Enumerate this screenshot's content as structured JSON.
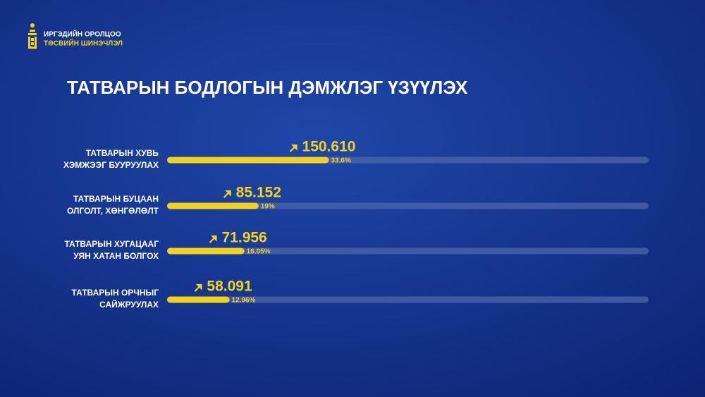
{
  "header": {
    "logo_lines": [
      "ИРГЭДИЙН ОРОЛЦОО",
      "ТӨСВИЙН ШИНЭЧЛЭЛ"
    ]
  },
  "chart_data": {
    "type": "bar",
    "title": "ТАТВАРЫН БОДЛОГЫН ДЭМЖЛЭГ ҮЗҮҮЛЭХ",
    "categories": [
      [
        "ТАТВАРЫН ХУВЬ",
        "ХЭМЖЭЭГ БУУРУУЛАХ"
      ],
      [
        "ТАТВАРЫН БУЦААН",
        "ОЛГОЛТ, ХӨНГӨЛӨЛТ"
      ],
      [
        "ТАТВАРЫН ХУГАЦААГ",
        "УЯН ХАТАН БОЛГОХ"
      ],
      [
        "ТАТВАРЫН ОРЧНЫГ",
        "САЙЖРУУЛАХ"
      ]
    ],
    "values": [
      33.6,
      19,
      16.05,
      12.96
    ],
    "value_labels": [
      "33.6%",
      "19%",
      "16.05%",
      "12.96%"
    ],
    "amounts": [
      150.61,
      85.152,
      71.956,
      58.091
    ],
    "amount_labels": [
      "150.610",
      "85.152",
      "71.956",
      "58.091"
    ],
    "xlim": [
      0,
      100
    ],
    "color": "#f2d21b",
    "track_color": "#4a64a8"
  }
}
